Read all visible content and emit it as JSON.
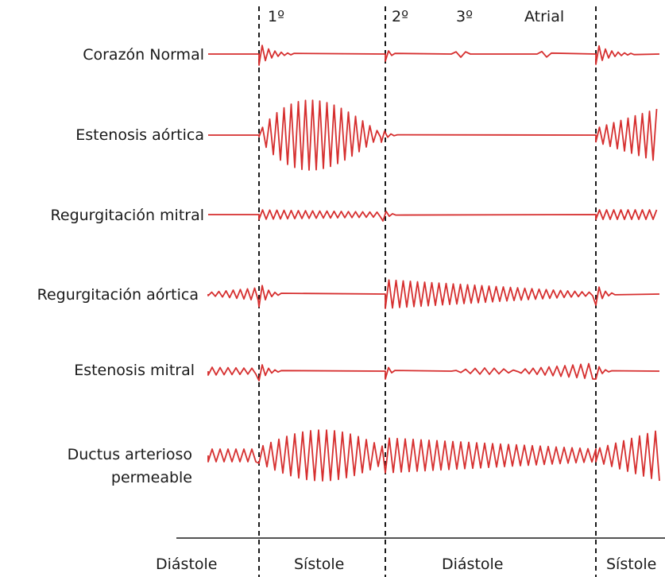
{
  "colors": {
    "trace": "#d62f2f",
    "text": "#1a1a1a",
    "background": "#ffffff"
  },
  "sound_labels": {
    "s1": "1º",
    "s2": "2º",
    "s3": "3º",
    "atrial": "Atrial"
  },
  "rows": [
    {
      "id": "normal",
      "label_lines": [
        "Corazón Normal"
      ]
    },
    {
      "id": "aortic-stenosis",
      "label_lines": [
        "Estenosis aórtica"
      ]
    },
    {
      "id": "mitral-regurgitation",
      "label_lines": [
        "Regurgitación mitral"
      ]
    },
    {
      "id": "aortic-regurgitation",
      "label_lines": [
        "Regurgitación aórtica"
      ]
    },
    {
      "id": "mitral-stenosis",
      "label_lines": [
        "Estenosis mitral"
      ]
    },
    {
      "id": "pda",
      "label_lines": [
        "Ductus arterioso",
        "permeable"
      ]
    }
  ],
  "phases": [
    "Diástole",
    "Sístole",
    "Diástole",
    "Sístole"
  ]
}
